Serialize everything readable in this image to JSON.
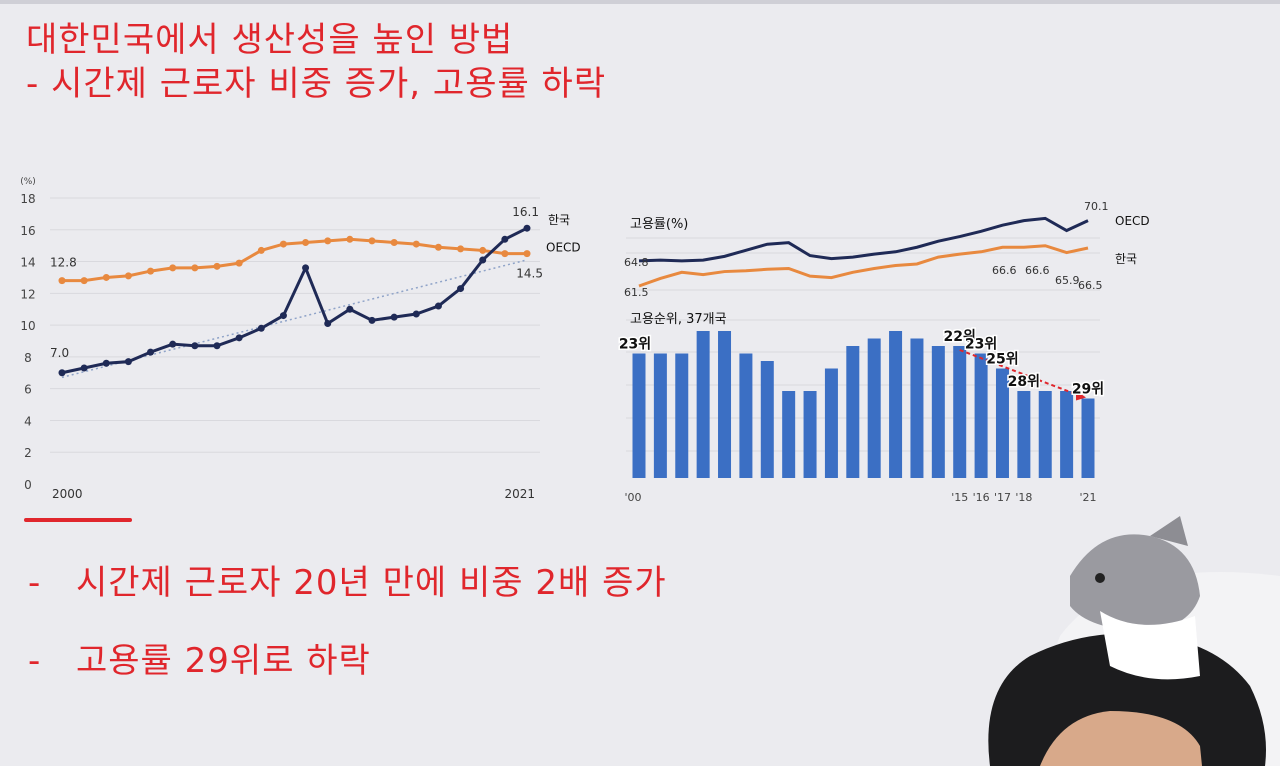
{
  "slide": {
    "title_line1": "대한민국에서 생산성을 높인 방법",
    "title_line2": "- 시간제 근로자 비중 증가, 고용률 하락",
    "bullets": [
      {
        "dash": "-",
        "text": "시간제 근로자 20년 만에 비중 2배 증가"
      },
      {
        "dash": "-",
        "text": "고용률 29위로 하락"
      }
    ]
  },
  "colors": {
    "korea_line": "#1f2a56",
    "oecd_line": "#e8893f",
    "bar": "#3b6fc4",
    "accent": "#e0262c",
    "grid": "#d9d9de"
  },
  "chart_data": [
    {
      "type": "line",
      "unit_label": "(%)",
      "ylim": [
        0,
        18
      ],
      "yticks": [
        "0",
        "2",
        "4",
        "6",
        "8",
        "10",
        "12",
        "14",
        "16",
        "18"
      ],
      "xtick_labels": [
        "2000",
        "2021"
      ],
      "x": [
        2000,
        2001,
        2002,
        2003,
        2004,
        2005,
        2006,
        2007,
        2008,
        2009,
        2010,
        2011,
        2012,
        2013,
        2014,
        2015,
        2016,
        2017,
        2018,
        2019,
        2020,
        2021
      ],
      "series": [
        {
          "name": "한국",
          "values": [
            7.0,
            7.3,
            7.6,
            7.7,
            8.3,
            8.8,
            8.7,
            8.7,
            9.2,
            9.8,
            10.6,
            13.6,
            10.1,
            11.0,
            10.3,
            10.5,
            10.7,
            11.2,
            12.3,
            14.1,
            15.4,
            16.1
          ]
        },
        {
          "name": "OECD",
          "values": [
            12.8,
            12.8,
            13.0,
            13.1,
            13.4,
            13.6,
            13.6,
            13.7,
            13.9,
            14.7,
            15.1,
            15.2,
            15.3,
            15.4,
            15.3,
            15.2,
            15.1,
            14.9,
            14.8,
            14.7,
            14.5,
            14.5
          ]
        }
      ],
      "annotations": [
        "7.0",
        "12.8",
        "16.1",
        "14.5"
      ],
      "trendline": true,
      "grid": true
    },
    {
      "type": "line",
      "title": "고용률(%)",
      "x": [
        2000,
        2001,
        2002,
        2003,
        2004,
        2005,
        2006,
        2007,
        2008,
        2009,
        2010,
        2011,
        2012,
        2013,
        2014,
        2015,
        2016,
        2017,
        2018,
        2019,
        2020,
        2021
      ],
      "ylim": [
        59,
        71.5
      ],
      "series": [
        {
          "name": "OECD",
          "values": [
            64.8,
            64.9,
            64.8,
            64.9,
            65.4,
            66.2,
            67.0,
            67.2,
            65.5,
            65.1,
            65.3,
            65.7,
            66.0,
            66.6,
            67.4,
            68.0,
            68.7,
            69.5,
            70.1,
            70.4,
            68.8,
            70.1
          ]
        },
        {
          "name": "한국",
          "values": [
            61.5,
            62.5,
            63.3,
            63.0,
            63.4,
            63.5,
            63.7,
            63.8,
            62.8,
            62.6,
            63.3,
            63.8,
            64.2,
            64.4,
            65.3,
            65.7,
            66.0,
            66.6,
            66.6,
            66.8,
            65.9,
            66.5
          ]
        }
      ],
      "annotations": [
        "70.1",
        "64.8",
        "61.5",
        "66.6",
        "66.6",
        "65.9",
        "66.5"
      ]
    },
    {
      "type": "bar",
      "title": "고용순위, 37개국",
      "categories": [
        "'00",
        "'01",
        "'02",
        "'03",
        "'04",
        "'05",
        "'06",
        "'07",
        "'08",
        "'09",
        "'10",
        "'11",
        "'12",
        "'13",
        "'14",
        "'15",
        "'16",
        "'17",
        "'18",
        "'19",
        "'20",
        "'21"
      ],
      "xtick_labels": [
        "'00",
        "'15",
        "'16",
        "'17",
        "'18",
        "'21"
      ],
      "rank_values": [
        23,
        23,
        23,
        20,
        20,
        23,
        24,
        28,
        28,
        25,
        22,
        21,
        20,
        21,
        22,
        22,
        23,
        25,
        28,
        28,
        28,
        29
      ],
      "data_labels": [
        {
          "index": 0,
          "text": "23위"
        },
        {
          "index": 15,
          "text": "22위"
        },
        {
          "index": 16,
          "text": "23위"
        },
        {
          "index": 17,
          "text": "25위"
        },
        {
          "index": 18,
          "text": "28위"
        },
        {
          "index": 21,
          "text": "29위"
        }
      ]
    }
  ]
}
